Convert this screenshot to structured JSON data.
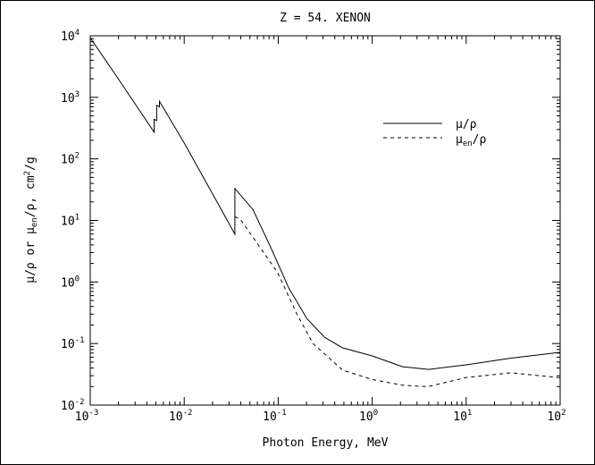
{
  "chart_data": {
    "type": "line",
    "title": "Z = 54.  XENON",
    "xlabel": "Photon Energy, MeV",
    "ylabel_parts": {
      "a": "μ/ρ or μ",
      "sub": "en",
      "b": "/ρ, cm",
      "sup": "2",
      "c": "/g"
    },
    "x_scale": "log",
    "y_scale": "log",
    "xlim": [
      0.001,
      100
    ],
    "ylim": [
      0.01,
      10000
    ],
    "x_ticks": [
      {
        "base": "10",
        "exp": "-3"
      },
      {
        "base": "10",
        "exp": "-2"
      },
      {
        "base": "10",
        "exp": "-1"
      },
      {
        "base": "10",
        "exp": "0"
      },
      {
        "base": "10",
        "exp": "1"
      },
      {
        "base": "10",
        "exp": "2"
      }
    ],
    "y_ticks": [
      {
        "base": "10",
        "exp": "-2"
      },
      {
        "base": "10",
        "exp": "-1"
      },
      {
        "base": "10",
        "exp": "0"
      },
      {
        "base": "10",
        "exp": "1"
      },
      {
        "base": "10",
        "exp": "2"
      },
      {
        "base": "10",
        "exp": "3"
      },
      {
        "base": "10",
        "exp": "4"
      }
    ],
    "grid": false,
    "legend_position": "upper-right",
    "series": [
      {
        "name": "μ/ρ",
        "style": "solid",
        "points": [
          [
            0.001,
            9300
          ],
          [
            0.002,
            1970
          ],
          [
            0.00478,
            272
          ],
          [
            0.00478,
            440
          ],
          [
            0.0051,
            420
          ],
          [
            0.0051,
            740
          ],
          [
            0.00545,
            700
          ],
          [
            0.00545,
            860
          ],
          [
            0.01,
            181
          ],
          [
            0.02,
            27
          ],
          [
            0.03456,
            6.0
          ],
          [
            0.03456,
            33
          ],
          [
            0.0541,
            14.9
          ],
          [
            0.084,
            3.56
          ],
          [
            0.13,
            0.79
          ],
          [
            0.202,
            0.255
          ],
          [
            0.313,
            0.126
          ],
          [
            0.485,
            0.085
          ],
          [
            1,
            0.063
          ],
          [
            2.11,
            0.042
          ],
          [
            4,
            0.038
          ],
          [
            10,
            0.045
          ],
          [
            30,
            0.058
          ],
          [
            100,
            0.072
          ]
        ]
      },
      {
        "name": "μen/ρ",
        "legend_main": "μ",
        "legend_sub": "en",
        "legend_tail": "/ρ",
        "style": "dashed",
        "points": [
          [
            0.03456,
            11.5
          ],
          [
            0.0398,
            10.3
          ],
          [
            0.098,
            1.44
          ],
          [
            0.16,
            0.29
          ],
          [
            0.235,
            0.1
          ],
          [
            0.485,
            0.037
          ],
          [
            1,
            0.026
          ],
          [
            2.11,
            0.021
          ],
          [
            3.9,
            0.0199
          ],
          [
            10,
            0.028
          ],
          [
            30,
            0.0334
          ],
          [
            100,
            0.0278
          ]
        ]
      }
    ]
  }
}
